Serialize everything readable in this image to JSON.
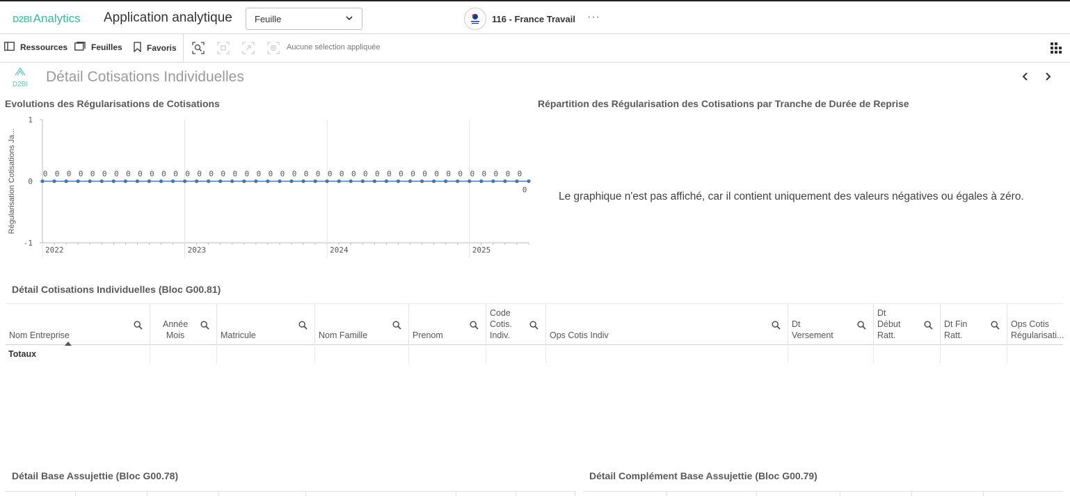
{
  "header": {
    "logo_mark": "D2BI",
    "logo_word": "Analytics",
    "app_title": "Application analytique",
    "sheet_select_value": "Feuille",
    "space_name": "116 - France Travail",
    "more_label": "···"
  },
  "toolbar": {
    "resources": "Ressources",
    "sheets": "Feuilles",
    "favorites": "Favoris",
    "no_selection": "Aucune sélection appliquée"
  },
  "sheet": {
    "logo_text": "D2BI",
    "title": "Détail Cotisations Individuelles"
  },
  "panels": {
    "chart_title": "Evolutions des Régularisations de Cotisations",
    "pie_title": "Répartition des Régularisation des Cotisations par Tranche de Durée de Reprise",
    "pie_message": "Le graphique n'est pas affiché, car il contient uniquement des valeurs négatives ou égales à zéro.",
    "table_title": "Détail Cotisations Individuelles (Bloc G00.81)",
    "bottom_left_title": "Détail Base Assujettie (Bloc G00.78)",
    "bottom_right_title": "Détail Complément Base Assujettie (Bloc G00.79)"
  },
  "table": {
    "columns": [
      {
        "label": [
          "Nom Entreprise"
        ]
      },
      {
        "label": [
          "Année",
          "Mois"
        ]
      },
      {
        "label": [
          "Matricule"
        ]
      },
      {
        "label": [
          "Nom Famille"
        ]
      },
      {
        "label": [
          "Prenom"
        ]
      },
      {
        "label": [
          "Code",
          "Cotis.",
          "Indiv."
        ]
      },
      {
        "label": [
          "Ops Cotis Indiv"
        ]
      },
      {
        "label": [
          "Dt",
          "Versement"
        ]
      },
      {
        "label": [
          "Dt",
          "Début",
          "Ratt."
        ]
      },
      {
        "label": [
          "Dt Fin",
          "Ratt."
        ]
      },
      {
        "label": [
          "Ops Cotis",
          "Régularisati..."
        ]
      }
    ],
    "totals_label": "Totaux"
  },
  "chart_data": {
    "type": "line",
    "title": "Evolutions des Régularisations de Cotisations",
    "ylabel": "Régularisation Cotisations Ja...",
    "xlabel": "",
    "ylim": [
      -1,
      1
    ],
    "yticks": [
      "1",
      "0",
      "-1"
    ],
    "xticks": [
      "2022",
      "2023",
      "2024",
      "2025"
    ],
    "grid": true,
    "series": [
      {
        "color": "#4477aa",
        "values": [
          0,
          0,
          0,
          0,
          0,
          0,
          0,
          0,
          0,
          0,
          0,
          0,
          0,
          0,
          0,
          0,
          0,
          0,
          0,
          0,
          0,
          0,
          0,
          0,
          0,
          0,
          0,
          0,
          0,
          0,
          0,
          0,
          0,
          0,
          0,
          0,
          0,
          0,
          0,
          0,
          0,
          0
        ]
      }
    ],
    "data_labels": [
      "0",
      "0",
      "0",
      "0",
      "0",
      "0",
      "0",
      "0",
      "0",
      "0",
      "0",
      "0",
      "0",
      "0",
      "0",
      "0",
      "0",
      "0",
      "0",
      "0",
      "0",
      "0",
      "0",
      "0",
      "0",
      "0",
      "0",
      "0",
      "0",
      "0",
      "0",
      "0",
      "0",
      "0",
      "0",
      "0",
      "0",
      "0",
      "0",
      "0",
      "0",
      "0"
    ]
  },
  "colors": {
    "accent": "#38b5a4",
    "line": "#4477aa"
  }
}
